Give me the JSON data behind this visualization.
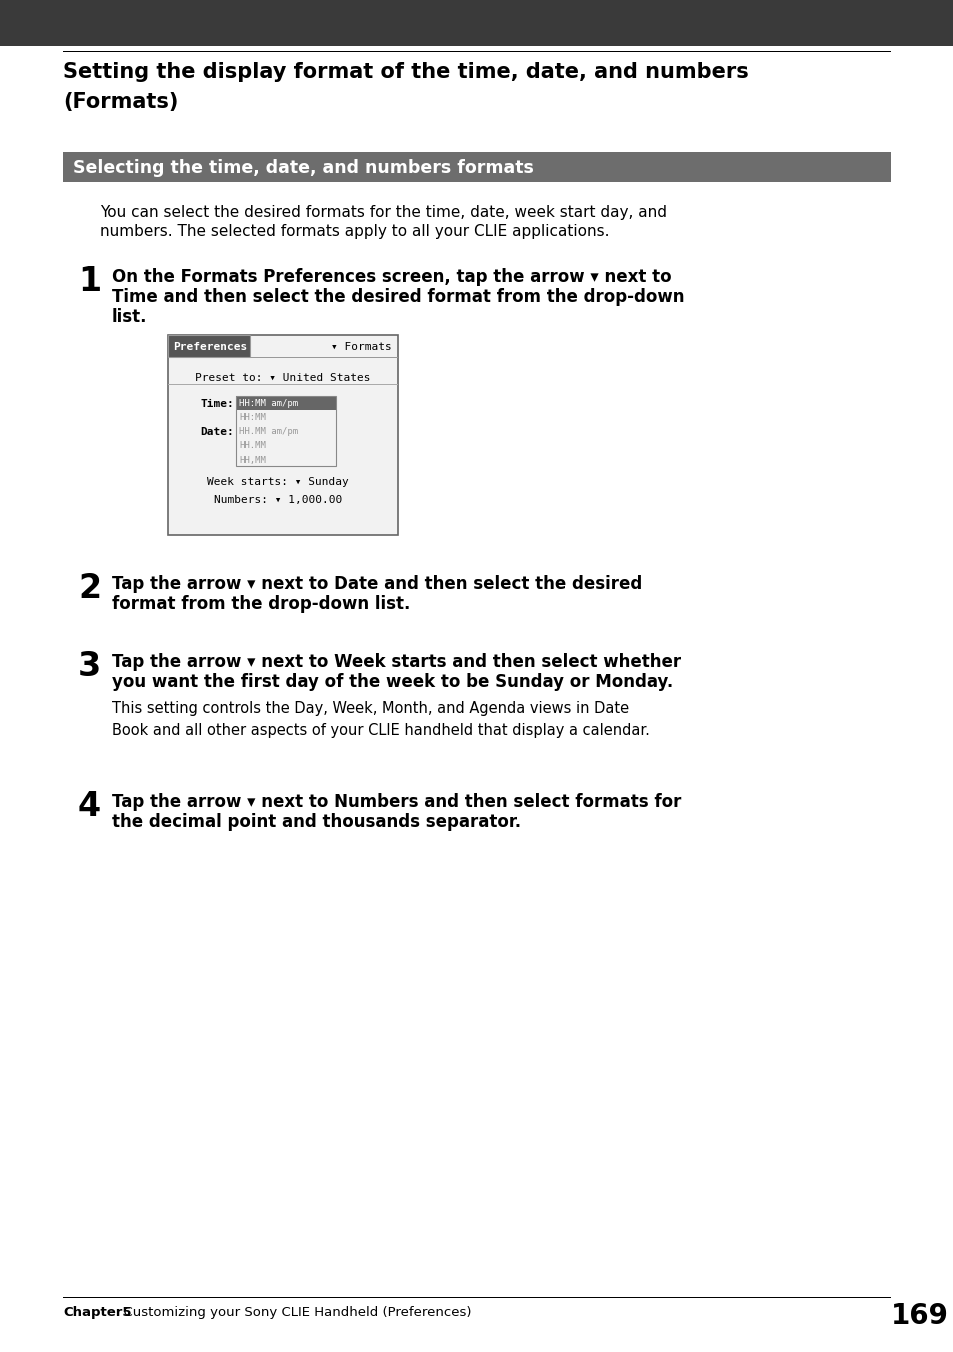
{
  "page_bg": "#ffffff",
  "top_bar_color": "#3a3a3a",
  "section_bar_color": "#6d6d6d",
  "title_text_line1": "Setting the display format of the time, date, and numbers",
  "title_text_line2": "(Formats)",
  "section_title": "Selecting the time, date, and numbers formats",
  "intro_line1": "You can select the desired formats for the time, date, week start day, and",
  "intro_line2": "numbers. The selected formats apply to all your CLIE applications.",
  "step1_num": "1",
  "step1_line1": "On the Formats Preferences screen, tap the arrow ▾ next to",
  "step1_line2": "Time and then select the desired format from the drop-down",
  "step1_line3": "list.",
  "step2_num": "2",
  "step2_line1": "Tap the arrow ▾ next to Date and then select the desired",
  "step2_line2": "format from the drop-down list.",
  "step3_num": "3",
  "step3_line1": "Tap the arrow ▾ next to Week starts and then select whether",
  "step3_line2": "you want the first day of the week to be Sunday or Monday.",
  "step3_small1": "This setting controls the Day, Week, Month, and Agenda views in Date",
  "step3_small2": "Book and all other aspects of your CLIE handheld that display a calendar.",
  "step4_num": "4",
  "step4_line1": "Tap the arrow ▾ next to Numbers and then select formats for",
  "step4_line2": "the decimal point and thousands separator.",
  "footer_bold": "Chapter5",
  "footer_regular": "  Customizing your Sony CLIE Handheld (Preferences)",
  "footer_num": "169",
  "screen_title_text": "Preferences",
  "screen_title_right": "▾ Formats",
  "screen_preset": "Preset to: ▾ United States",
  "screen_time_label": "Time:",
  "screen_date_label": "Date:",
  "screen_dropdown_items": [
    "HH:MM am/pm",
    "HH:MM",
    "HH.MM am/pm",
    "HH.MM",
    "HH,MM"
  ],
  "screen_week_label": "Week starts: ▾ Sunday",
  "screen_numbers_label": "Numbers: ▾ 1,000.00"
}
